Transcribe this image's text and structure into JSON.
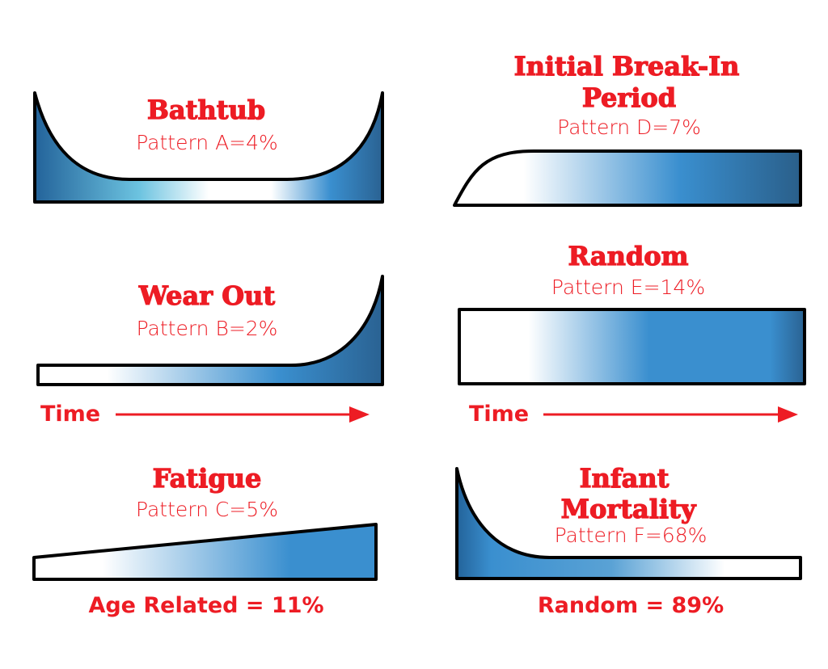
{
  "colors": {
    "text": "#ed1c24",
    "fill_dark": "#23639a",
    "fill_mid": "#3a8fcf",
    "fill_light": "#6cc3e0",
    "outline": "#000000"
  },
  "patterns": [
    {
      "id": "A",
      "title_lines": [
        "Bathtub"
      ],
      "label": "Pattern A=4%"
    },
    {
      "id": "B",
      "title_lines": [
        "Wear Out"
      ],
      "label": "Pattern B=2%"
    },
    {
      "id": "C",
      "title_lines": [
        "Fatigue"
      ],
      "label": "Pattern C=5%"
    },
    {
      "id": "D",
      "title_lines": [
        "Initial Break-In",
        "Period"
      ],
      "label": "Pattern D=7%"
    },
    {
      "id": "E",
      "title_lines": [
        "Random"
      ],
      "label": "Pattern E=14%"
    },
    {
      "id": "F",
      "title_lines": [
        "Infant",
        "Mortality"
      ],
      "label": "Pattern F=68%"
    }
  ],
  "time_axis": {
    "label": "Time"
  },
  "summaries": {
    "left": "Age Related = 11%",
    "right": "Random = 89%"
  }
}
